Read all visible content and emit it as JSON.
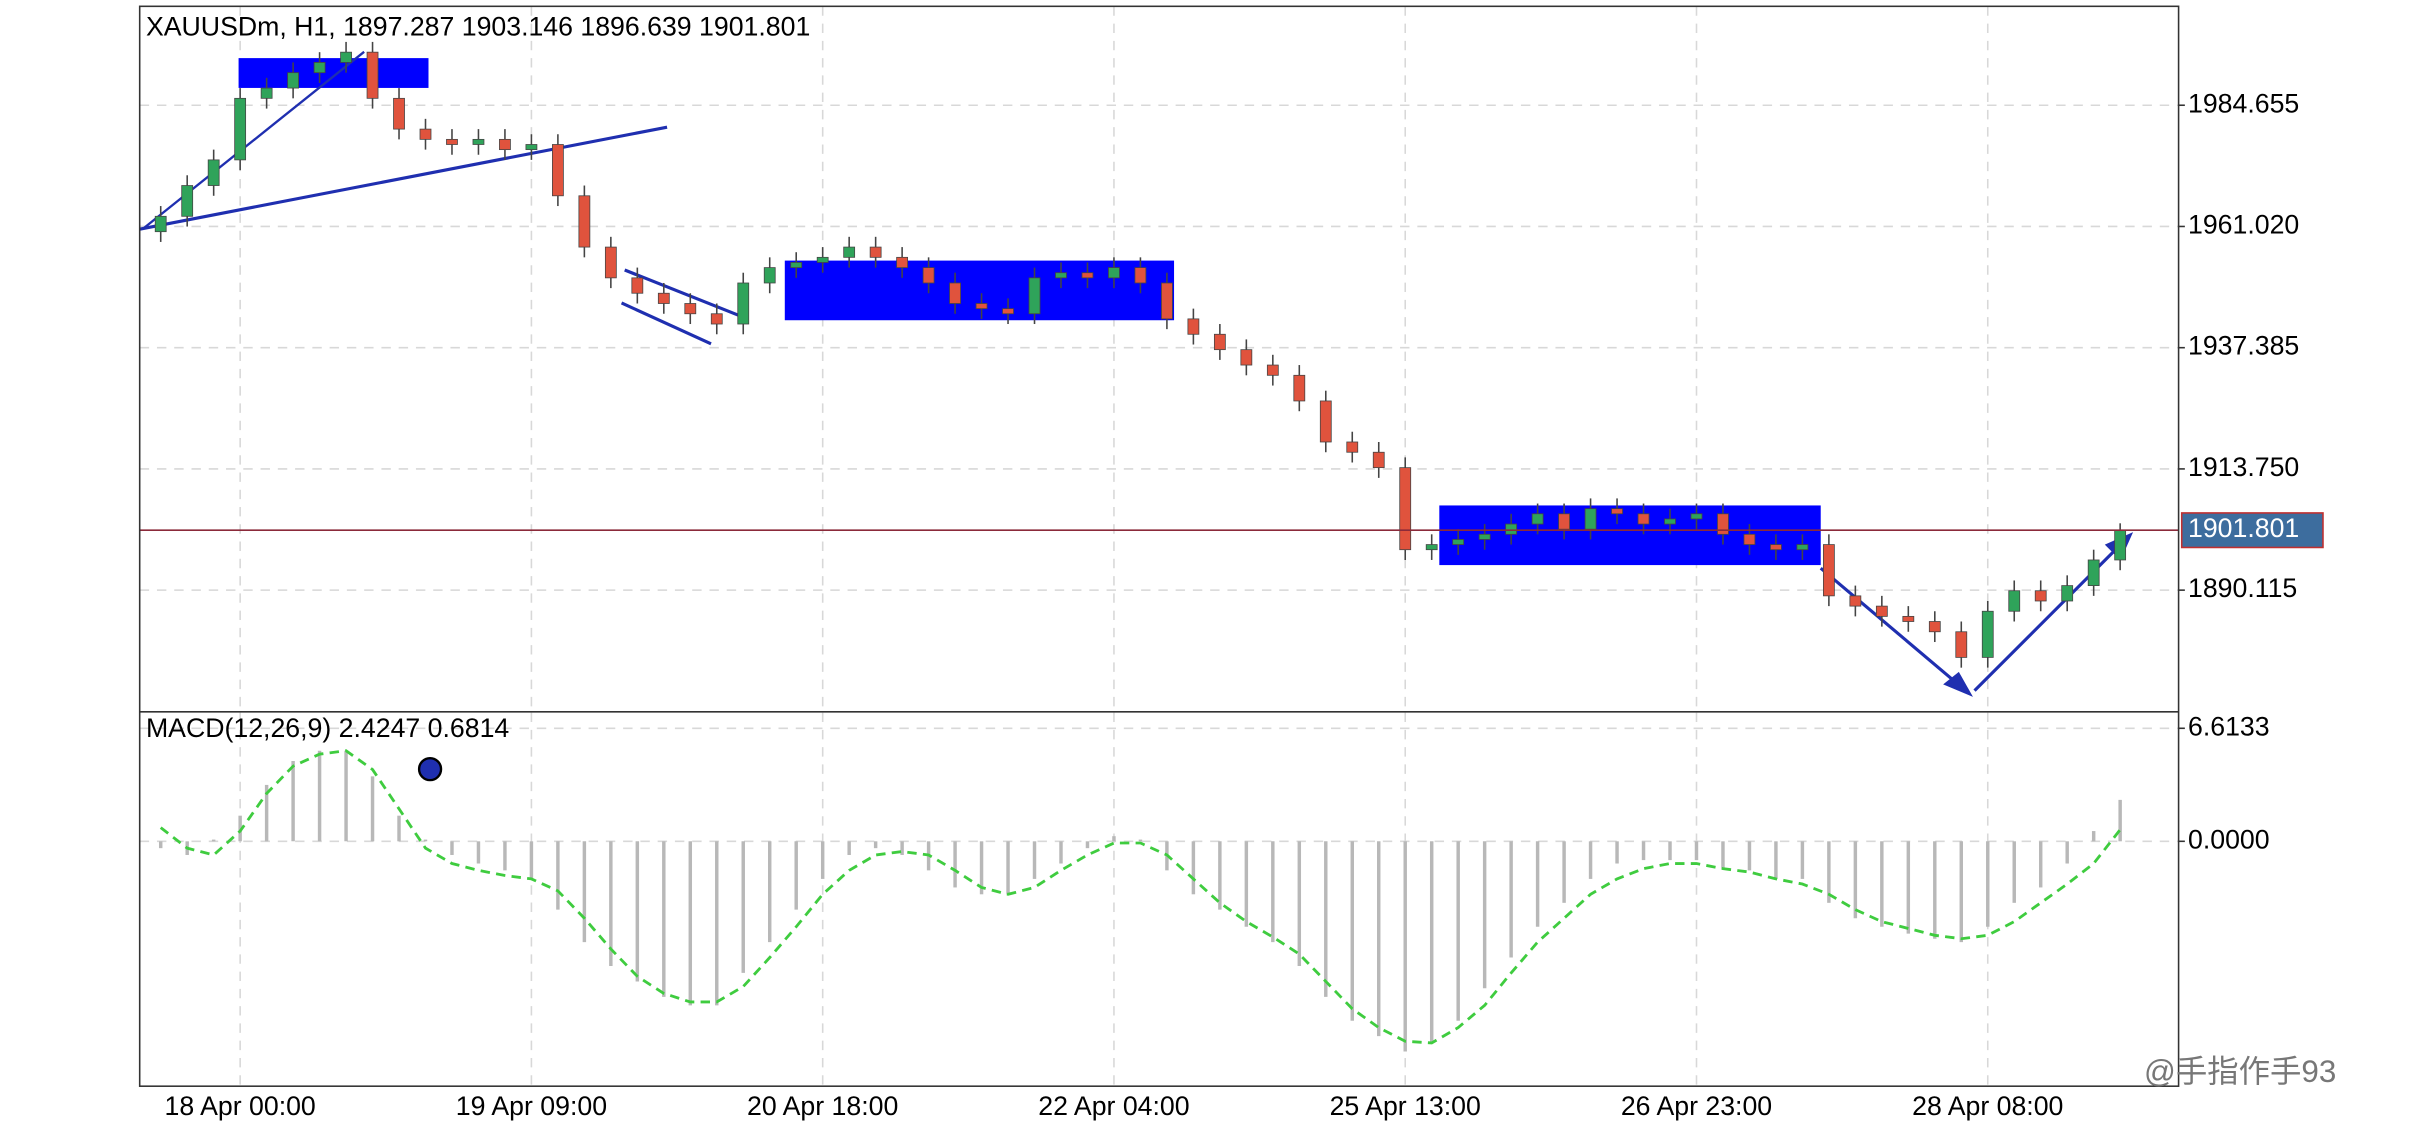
{
  "chart_data": [
    {
      "type": "candlestick",
      "title": "XAUUSDm, H1, 1897.287 1903.146 1896.639 1901.801",
      "categories": [
        null,
        null,
        null,
        "18 Apr 00:00",
        null,
        null,
        null,
        null,
        null,
        null,
        null,
        null,
        null,
        null,
        "19 Apr 09:00",
        null,
        null,
        null,
        null,
        null,
        null,
        null,
        null,
        null,
        null,
        "20 Apr 18:00",
        null,
        null,
        null,
        null,
        null,
        null,
        null,
        null,
        null,
        null,
        "22 Apr 04:00",
        null,
        null,
        null,
        null,
        null,
        null,
        null,
        null,
        null,
        null,
        "25 Apr 13:00",
        null,
        null,
        null,
        null,
        null,
        null,
        null,
        null,
        null,
        null,
        "26 Apr 23:00",
        null,
        null,
        null,
        null,
        null,
        null,
        null,
        null,
        null,
        null,
        "28 Apr 08:00",
        null,
        null,
        null,
        null,
        null
      ],
      "open": [
        1960,
        1963,
        1969,
        1974,
        1986,
        1988,
        1991,
        1993,
        1995,
        1986,
        1980,
        1978,
        1977,
        1978,
        1976,
        1977,
        1967,
        1957,
        1951,
        1948,
        1946,
        1944,
        1942,
        1950,
        1953,
        1954,
        1955,
        1957,
        1955,
        1953,
        1950,
        1946,
        1945,
        1944,
        1951,
        1952,
        1951,
        1953,
        1950,
        1943,
        1940,
        1937,
        1934,
        1932,
        1927,
        1919,
        1917,
        1914,
        1898,
        1899,
        1900,
        1901,
        1903,
        1905,
        1902,
        1906,
        1905,
        1903,
        1904,
        1905,
        1901,
        1899,
        1898,
        1899,
        1889,
        1887,
        1885,
        1884,
        1882,
        1877,
        1886,
        1890,
        1888,
        1891,
        1896
      ],
      "high": [
        1965,
        1971,
        1976,
        1988,
        1990,
        1993,
        1995,
        1997,
        1997,
        1988,
        1982,
        1980,
        1980,
        1980,
        1979,
        1979,
        1969,
        1959,
        1953,
        1950,
        1948,
        1946,
        1952,
        1955,
        1956,
        1957,
        1959,
        1959,
        1957,
        1955,
        1952,
        1948,
        1947,
        1953,
        1954,
        1954,
        1955,
        1955,
        1952,
        1945,
        1942,
        1939,
        1936,
        1934,
        1929,
        1921,
        1919,
        1916,
        1901,
        1902,
        1903,
        1905,
        1907,
        1907,
        1908,
        1908,
        1907,
        1906,
        1907,
        1907,
        1903,
        1901,
        1901,
        1901,
        1891,
        1889,
        1887,
        1886,
        1884,
        1888,
        1892,
        1892,
        1893,
        1898,
        1903.146
      ],
      "low": [
        1958,
        1961,
        1967,
        1972,
        1984,
        1986,
        1989,
        1991,
        1984,
        1978,
        1976,
        1975,
        1975,
        1974,
        1974,
        1965,
        1955,
        1949,
        1946,
        1944,
        1942,
        1940,
        1940,
        1948,
        1951,
        1952,
        1953,
        1953,
        1951,
        1948,
        1944,
        1943,
        1942,
        1942,
        1949,
        1949,
        1949,
        1948,
        1941,
        1938,
        1935,
        1932,
        1930,
        1925,
        1917,
        1915,
        1912,
        1896,
        1896,
        1897,
        1898,
        1899,
        1901,
        1900,
        1900,
        1903,
        1901,
        1901,
        1902,
        1899,
        1897,
        1896,
        1896,
        1887,
        1885,
        1883,
        1882,
        1880,
        1875,
        1875,
        1884,
        1886,
        1886,
        1889,
        1894
      ],
      "close": [
        1963,
        1969,
        1974,
        1986,
        1988,
        1991,
        1993,
        1995,
        1986,
        1980,
        1978,
        1977,
        1978,
        1976,
        1977,
        1967,
        1957,
        1951,
        1948,
        1946,
        1944,
        1942,
        1950,
        1953,
        1954,
        1955,
        1957,
        1955,
        1953,
        1950,
        1946,
        1945,
        1944,
        1951,
        1952,
        1951,
        1953,
        1950,
        1943,
        1940,
        1937,
        1934,
        1932,
        1927,
        1919,
        1917,
        1914,
        1898,
        1899,
        1900,
        1901,
        1903,
        1905,
        1902,
        1906,
        1905,
        1903,
        1904,
        1905,
        1901,
        1899,
        1898,
        1899,
        1889,
        1887,
        1885,
        1884,
        1882,
        1877,
        1886,
        1890,
        1888,
        1891,
        1896,
        1901.801
      ],
      "up_color": "#2fa35a",
      "down_color": "#e0533d",
      "ylim": [
        1866.54,
        2003.94
      ],
      "yticks": [
        1984.655,
        {
          "value": 1961.02,
          "label": "1961.020"
        },
        1937.385,
        {
          "value": 1913.75,
          "label": "1913.750"
        },
        1890.115
      ],
      "last_price": 1901.801,
      "grid": true
    },
    {
      "type": "macd",
      "title": "MACD(12,26,9) 2.4247 0.6814",
      "macd_values": [
        -0.4,
        -0.8,
        0.1,
        1.5,
        3.3,
        4.7,
        5.3,
        5.3,
        3.8,
        1.5,
        0.1,
        -0.8,
        -1.3,
        -1.7,
        -2.2,
        -4.0,
        -5.9,
        -7.3,
        -8.2,
        -9.1,
        -9.6,
        -9.6,
        -7.7,
        -5.9,
        -4.0,
        -2.2,
        -0.8,
        -0.4,
        -0.8,
        -1.7,
        -2.7,
        -3.1,
        -3.1,
        -2.2,
        -1.3,
        -0.4,
        0.3,
        0.1,
        -1.7,
        -3.1,
        -4.0,
        -5.0,
        -5.9,
        -7.3,
        -9.1,
        -10.5,
        -11.4,
        -12.3,
        -11.8,
        -10.5,
        -8.6,
        -6.8,
        -5.0,
        -3.6,
        -2.2,
        -1.3,
        -1.1,
        -1.1,
        -1.1,
        -1.6,
        -1.7,
        -2.2,
        -2.2,
        -3.6,
        -4.5,
        -5.0,
        -5.4,
        -5.7,
        -5.9,
        -5.0,
        -3.6,
        -2.7,
        -1.3,
        0.6,
        2.4247
      ],
      "signal_values": [
        0.8,
        -0.4,
        -0.8,
        0.6,
        2.8,
        4.4,
        5.1,
        5.3,
        4.2,
        1.9,
        -0.4,
        -1.3,
        -1.7,
        -2.0,
        -2.2,
        -2.9,
        -4.5,
        -6.3,
        -7.9,
        -8.9,
        -9.4,
        -9.4,
        -8.5,
        -6.8,
        -5.0,
        -3.1,
        -1.7,
        -0.8,
        -0.6,
        -0.8,
        -1.7,
        -2.7,
        -3.1,
        -2.7,
        -1.7,
        -0.8,
        -0.1,
        -0.1,
        -0.8,
        -2.2,
        -3.6,
        -4.7,
        -5.6,
        -6.6,
        -8.2,
        -9.8,
        -10.9,
        -11.7,
        -11.8,
        -10.9,
        -9.6,
        -7.7,
        -5.9,
        -4.5,
        -3.1,
        -2.2,
        -1.6,
        -1.3,
        -1.3,
        -1.6,
        -1.8,
        -2.2,
        -2.5,
        -3.1,
        -4.0,
        -4.7,
        -5.1,
        -5.5,
        -5.7,
        -5.5,
        -4.7,
        -3.6,
        -2.5,
        -1.3,
        0.6814
      ],
      "macd_color": "#b8b8b8",
      "signal_color": "#3fcc3f",
      "ylim": [
        -14.33,
        7.53
      ],
      "yticks": [
        6.6133,
        {
          "value": 0,
          "label": "0.0000"
        }
      ],
      "grid": true
    }
  ],
  "watermark": "@手指作手93"
}
